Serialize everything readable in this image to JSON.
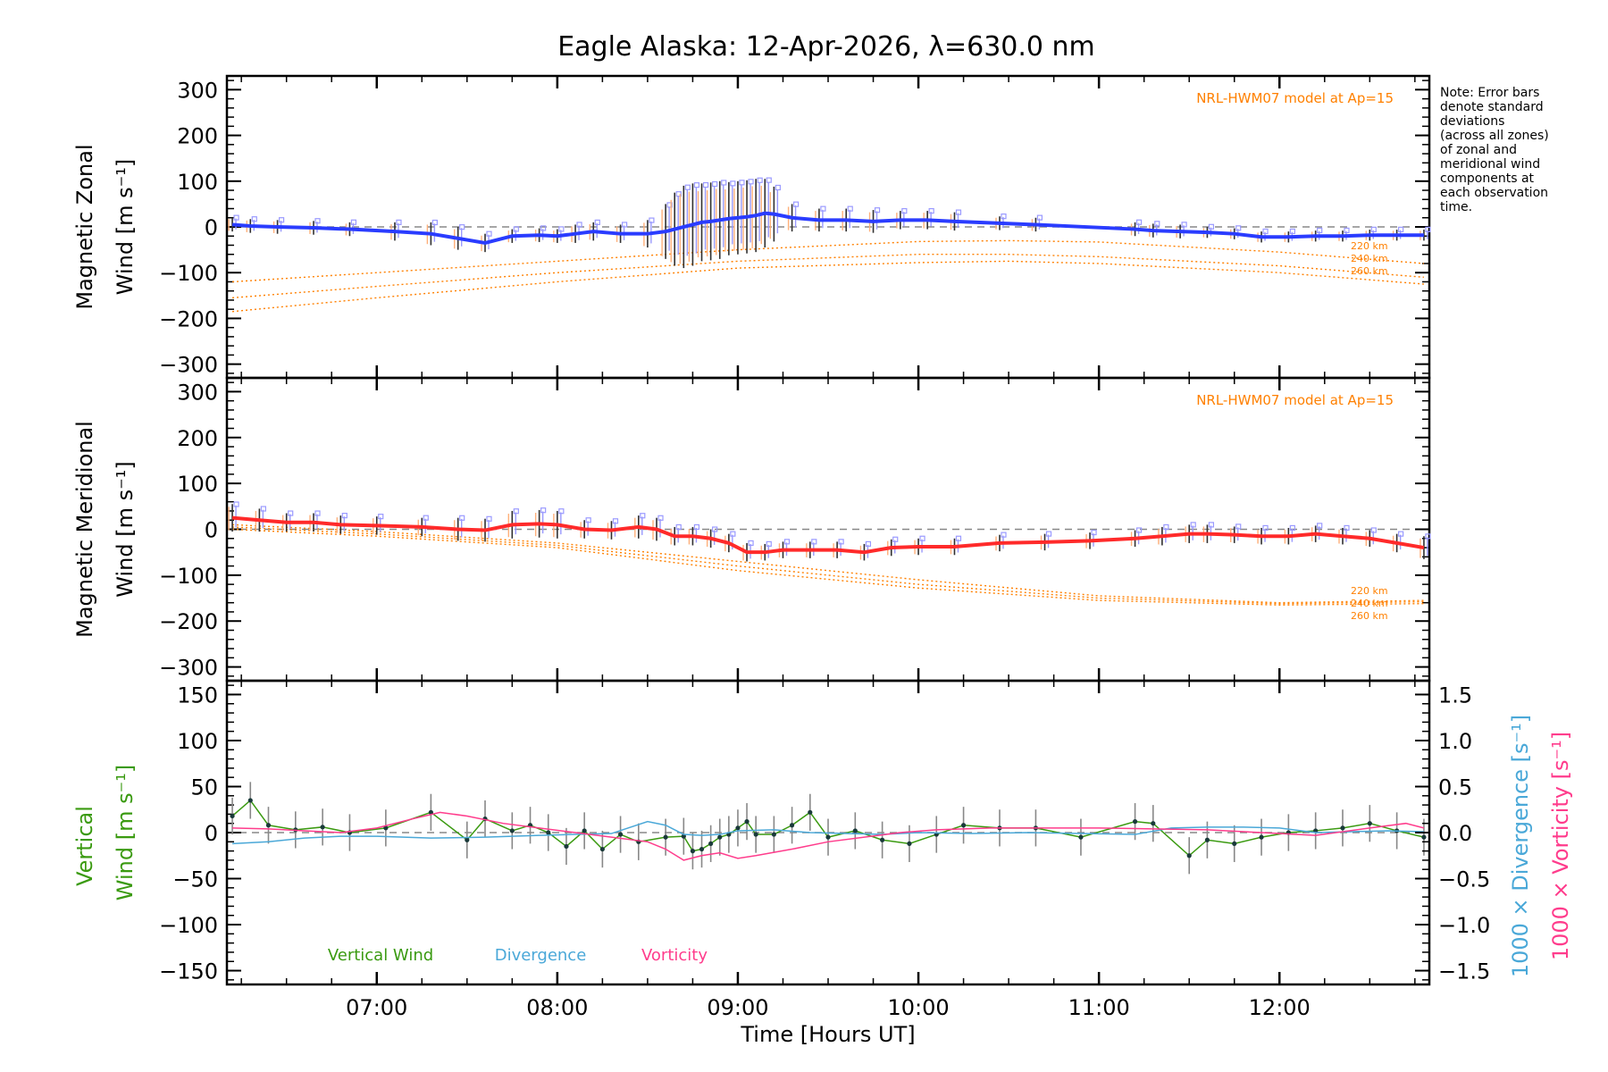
{
  "title": "Eagle Alaska: 12-Apr-2026, λ=630.0 nm",
  "note_lines": [
    "Note: Error bars",
    "denote standard",
    "deviations",
    "(across all zones)",
    "of zonal and",
    "meridional wind",
    "components at",
    "each observation",
    "time."
  ],
  "colors": {
    "zonal": "#2a3cff",
    "meridional": "#ff2a2a",
    "model": "#ff8000",
    "vertical": "#3a9a10",
    "divergence": "#4aa8d8",
    "vorticity": "#ff3c8c",
    "zone_light_blue": "#9a9aff",
    "zone_light_orange": "#ffb07a",
    "errbar": "#303030"
  },
  "chart_data": [
    {
      "type": "line",
      "name": "zonal",
      "ylabel_line1": "Magnetic Zonal",
      "ylabel_line2": "Wind [m s⁻¹]",
      "ylim": [
        -330,
        330
      ],
      "yticks": [
        300,
        200,
        100,
        0,
        -100,
        -200,
        -300
      ],
      "ytick_labels": [
        "300",
        "200",
        "100",
        "0",
        "−100",
        "−200",
        "−300"
      ],
      "model_label": "NRL-HWM07 model at Ap=15",
      "altitude_labels": [
        "220 km",
        "240 km",
        "260 km"
      ],
      "x": [
        6.2,
        6.3,
        6.45,
        6.65,
        6.85,
        7.1,
        7.3,
        7.45,
        7.6,
        7.75,
        7.9,
        8.0,
        8.1,
        8.2,
        8.35,
        8.5,
        8.6,
        8.65,
        8.7,
        8.75,
        8.8,
        8.85,
        8.9,
        8.95,
        9.0,
        9.05,
        9.1,
        9.15,
        9.2,
        9.3,
        9.45,
        9.6,
        9.75,
        9.9,
        10.05,
        10.2,
        10.45,
        10.65,
        11.2,
        11.3,
        11.45,
        11.6,
        11.75,
        11.9,
        12.05,
        12.2,
        12.35,
        12.5,
        12.65,
        12.8
      ],
      "y": [
        5,
        2,
        0,
        -2,
        -5,
        -10,
        -15,
        -25,
        -35,
        -20,
        -18,
        -20,
        -15,
        -10,
        -15,
        -15,
        -10,
        -5,
        0,
        5,
        10,
        12,
        15,
        18,
        20,
        22,
        25,
        30,
        28,
        20,
        15,
        15,
        12,
        15,
        15,
        12,
        8,
        5,
        -5,
        -8,
        -10,
        -12,
        -15,
        -22,
        -22,
        -20,
        -20,
        -18,
        -18,
        -18
      ],
      "err": [
        15,
        15,
        15,
        15,
        15,
        20,
        25,
        25,
        20,
        15,
        15,
        15,
        20,
        20,
        20,
        30,
        60,
        80,
        90,
        90,
        85,
        85,
        85,
        80,
        80,
        80,
        80,
        75,
        60,
        30,
        25,
        25,
        25,
        20,
        20,
        20,
        15,
        15,
        15,
        15,
        15,
        12,
        12,
        12,
        12,
        12,
        12,
        12,
        12,
        12
      ],
      "model_curves": [
        {
          "alt": "220 km",
          "x": [
            6.2,
            7.0,
            8.0,
            9.0,
            10.0,
            10.5,
            11.0,
            12.0,
            12.8
          ],
          "y": [
            -120,
            -100,
            -75,
            -50,
            -32,
            -30,
            -33,
            -55,
            -80
          ]
        },
        {
          "alt": "240 km",
          "x": [
            6.2,
            7.0,
            8.0,
            9.0,
            10.0,
            10.5,
            11.0,
            12.0,
            12.8
          ],
          "y": [
            -155,
            -130,
            -100,
            -75,
            -60,
            -60,
            -65,
            -85,
            -110
          ]
        },
        {
          "alt": "260 km",
          "x": [
            6.2,
            7.0,
            8.0,
            9.0,
            10.0,
            10.5,
            11.0,
            12.0,
            12.8
          ],
          "y": [
            -185,
            -155,
            -120,
            -90,
            -78,
            -75,
            -80,
            -100,
            -125
          ]
        }
      ]
    },
    {
      "type": "line",
      "name": "meridional",
      "ylabel_line1": "Magnetic Meridional",
      "ylabel_line2": "Wind [m s⁻¹]",
      "ylim": [
        -330,
        330
      ],
      "yticks": [
        300,
        200,
        100,
        0,
        -100,
        -200,
        -300
      ],
      "ytick_labels": [
        "300",
        "200",
        "100",
        "0",
        "−100",
        "−200",
        "−300"
      ],
      "model_label": "NRL-HWM07 model at Ap=15",
      "altitude_labels": [
        "220 km",
        "240 km",
        "260 km"
      ],
      "x": [
        6.2,
        6.35,
        6.5,
        6.65,
        6.8,
        7.0,
        7.25,
        7.45,
        7.6,
        7.75,
        7.9,
        8.0,
        8.15,
        8.3,
        8.45,
        8.55,
        8.65,
        8.75,
        8.85,
        8.95,
        9.05,
        9.15,
        9.25,
        9.4,
        9.55,
        9.7,
        9.85,
        10.0,
        10.2,
        10.45,
        10.7,
        10.95,
        11.2,
        11.35,
        11.5,
        11.6,
        11.75,
        11.9,
        12.05,
        12.2,
        12.35,
        12.5,
        12.65,
        12.8
      ],
      "y": [
        25,
        20,
        15,
        15,
        10,
        8,
        5,
        0,
        -2,
        10,
        12,
        10,
        0,
        -2,
        5,
        0,
        -15,
        -15,
        -20,
        -30,
        -50,
        -50,
        -45,
        -45,
        -45,
        -50,
        -40,
        -38,
        -38,
        -30,
        -28,
        -25,
        -20,
        -15,
        -10,
        -10,
        -12,
        -15,
        -15,
        -10,
        -15,
        -20,
        -30,
        -40
      ],
      "err": [
        30,
        25,
        20,
        20,
        20,
        20,
        20,
        25,
        25,
        30,
        30,
        30,
        20,
        20,
        25,
        25,
        20,
        20,
        20,
        20,
        20,
        18,
        18,
        18,
        18,
        18,
        18,
        18,
        18,
        18,
        18,
        18,
        18,
        20,
        20,
        20,
        18,
        18,
        18,
        18,
        18,
        18,
        20,
        25
      ],
      "model_curves": [
        {
          "alt": "220 km",
          "x": [
            6.2,
            7.0,
            8.0,
            9.0,
            10.0,
            11.0,
            12.0,
            12.8
          ],
          "y": [
            10,
            -5,
            -30,
            -70,
            -110,
            -145,
            -160,
            -155
          ]
        },
        {
          "alt": "240 km",
          "x": [
            6.2,
            7.0,
            8.0,
            9.0,
            10.0,
            11.0,
            12.0,
            12.8
          ],
          "y": [
            5,
            -10,
            -35,
            -80,
            -120,
            -150,
            -162,
            -158
          ]
        },
        {
          "alt": "260 km",
          "x": [
            6.2,
            7.0,
            8.0,
            9.0,
            10.0,
            11.0,
            12.0,
            12.8
          ],
          "y": [
            0,
            -15,
            -40,
            -90,
            -128,
            -155,
            -165,
            -162
          ]
        }
      ]
    },
    {
      "type": "line",
      "name": "vertical",
      "ylabel_line1": "Vertical",
      "ylabel_line2": "Wind [m s⁻¹]",
      "ylim": [
        -165,
        165
      ],
      "yticks": [
        150,
        100,
        50,
        0,
        -50,
        -100,
        -150
      ],
      "ytick_labels": [
        "150",
        "100",
        "50",
        "0",
        "−50",
        "−100",
        "−150"
      ],
      "y2lim": [
        -1.65,
        1.65
      ],
      "y2ticks": [
        1.5,
        1.0,
        0.5,
        0.0,
        -0.5,
        -1.0,
        -1.5
      ],
      "y2tick_labels": [
        "1.5",
        "1.0",
        "0.5",
        "0.0",
        "−0.5",
        "−1.0",
        "−1.5"
      ],
      "y2label_div": "1000 × Divergence [s⁻¹]",
      "y2label_vor": "1000 × Vorticity [s⁻¹]",
      "xticks": [
        7.0,
        8.0,
        9.0,
        10.0,
        11.0,
        12.0
      ],
      "xtick_labels": [
        "07:00",
        "08:00",
        "09:00",
        "10:00",
        "11:00",
        "12:00"
      ],
      "xlim": [
        6.17,
        12.83
      ],
      "xlabel": "Time [Hours UT]",
      "legend": [
        "Vertical Wind",
        "Divergence",
        "Vorticity"
      ],
      "x": [
        6.2,
        6.3,
        6.4,
        6.55,
        6.7,
        6.85,
        7.05,
        7.3,
        7.5,
        7.6,
        7.75,
        7.85,
        7.95,
        8.05,
        8.15,
        8.25,
        8.35,
        8.45,
        8.6,
        8.7,
        8.75,
        8.8,
        8.85,
        8.9,
        8.95,
        9.0,
        9.05,
        9.1,
        9.2,
        9.3,
        9.4,
        9.5,
        9.65,
        9.8,
        9.95,
        10.1,
        10.25,
        10.45,
        10.65,
        10.9,
        11.2,
        11.3,
        11.5,
        11.6,
        11.75,
        11.9,
        12.05,
        12.2,
        12.35,
        12.5,
        12.65,
        12.8
      ],
      "y": [
        18,
        35,
        8,
        3,
        6,
        0,
        5,
        22,
        -8,
        15,
        2,
        8,
        0,
        -15,
        2,
        -18,
        -2,
        -10,
        -5,
        -4,
        -20,
        -18,
        -12,
        -5,
        -2,
        5,
        12,
        -2,
        -2,
        8,
        22,
        -5,
        2,
        -8,
        -12,
        -2,
        8,
        5,
        5,
        -5,
        12,
        10,
        -25,
        -8,
        -12,
        -5,
        0,
        2,
        5,
        10,
        2,
        -5
      ],
      "div_x": [
        6.2,
        6.4,
        6.6,
        6.8,
        7.0,
        7.3,
        7.6,
        7.9,
        8.1,
        8.3,
        8.5,
        8.6,
        8.7,
        8.8,
        8.9,
        9.0,
        9.2,
        9.4,
        9.6,
        9.8,
        10.0,
        10.3,
        10.6,
        10.9,
        11.2,
        11.4,
        11.6,
        11.8,
        12.0,
        12.2,
        12.4,
        12.6,
        12.8
      ],
      "div_y": [
        -0.12,
        -0.1,
        -0.06,
        -0.04,
        -0.04,
        -0.06,
        -0.05,
        -0.03,
        -0.02,
        -0.01,
        0.12,
        0.08,
        -0.02,
        -0.03,
        -0.02,
        0.02,
        0.03,
        0.0,
        -0.01,
        -0.02,
        0.0,
        -0.01,
        0.0,
        -0.01,
        -0.02,
        0.05,
        0.06,
        0.06,
        0.05,
        0.0,
        0.01,
        0.02,
        0.01
      ],
      "vor_x": [
        6.2,
        6.4,
        6.6,
        6.8,
        7.0,
        7.2,
        7.35,
        7.5,
        7.7,
        7.9,
        8.1,
        8.3,
        8.5,
        8.6,
        8.7,
        8.8,
        8.9,
        9.0,
        9.1,
        9.3,
        9.5,
        9.7,
        9.9,
        10.1,
        10.4,
        10.7,
        11.0,
        11.3,
        11.6,
        11.9,
        12.2,
        12.5,
        12.7,
        12.8
      ],
      "vor_y": [
        0.05,
        0.04,
        0.02,
        0.0,
        0.05,
        0.15,
        0.22,
        0.18,
        0.1,
        0.05,
        0.0,
        -0.05,
        -0.1,
        -0.18,
        -0.3,
        -0.25,
        -0.22,
        -0.28,
        -0.25,
        -0.18,
        -0.1,
        -0.05,
        0.0,
        0.03,
        0.05,
        0.05,
        0.05,
        0.04,
        0.03,
        0.0,
        -0.03,
        0.05,
        0.1,
        0.05
      ],
      "err": [
        20,
        20,
        20,
        20,
        20,
        20,
        20,
        20,
        20,
        20,
        20,
        20,
        20,
        20,
        20,
        20,
        20,
        20,
        20,
        20,
        20,
        20,
        20,
        20,
        20,
        20,
        20,
        20,
        20,
        20,
        20,
        20,
        20,
        20,
        20,
        20,
        20,
        20,
        20,
        20,
        20,
        20,
        20,
        20,
        20,
        20,
        20,
        20,
        20,
        20,
        20,
        20
      ]
    }
  ]
}
